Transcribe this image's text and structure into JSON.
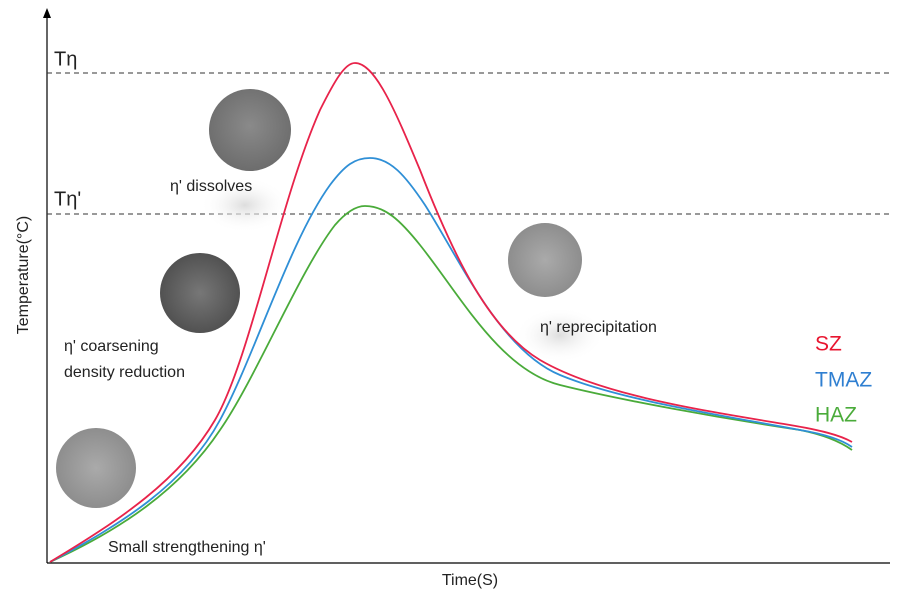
{
  "axes": {
    "x_label": "Time(S)",
    "y_label": "Temperature(°C)"
  },
  "levels": [
    {
      "label": "Tη"
    },
    {
      "label": "Tη'"
    }
  ],
  "annotations": [
    {
      "label": "η' dissolves"
    },
    {
      "lines": [
        "η' coarsening",
        "density reduction"
      ]
    },
    {
      "label": "η' reprecipitation"
    },
    {
      "label": "Small strengthening η'"
    }
  ],
  "curves": [
    {
      "label": "SZ"
    },
    {
      "label": "TMAZ"
    },
    {
      "label": "HAZ"
    }
  ]
}
